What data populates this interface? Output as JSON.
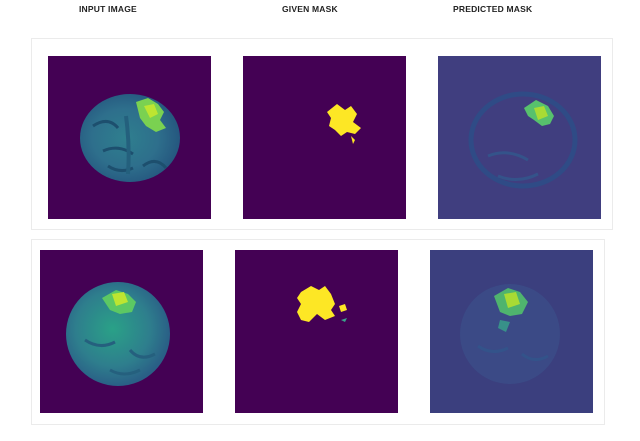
{
  "headers": {
    "input_image": "INPUT IMAGE",
    "given_mask": "GIVEN MASK",
    "predicted_mask": "PREDICTED MASK"
  },
  "colors": {
    "background_dark": "#440154",
    "predicted_background": "#3b3f7e",
    "brain_tissue": "#3a8a8c",
    "tumor_highlight": "#7ad151",
    "tumor_bright": "#bde531",
    "mask_yellow": "#fde725"
  },
  "rows": [
    {
      "name": "row-1",
      "panels": [
        "input-image",
        "given-mask",
        "predicted-mask"
      ]
    },
    {
      "name": "row-2",
      "panels": [
        "input-image",
        "given-mask",
        "predicted-mask"
      ]
    }
  ]
}
